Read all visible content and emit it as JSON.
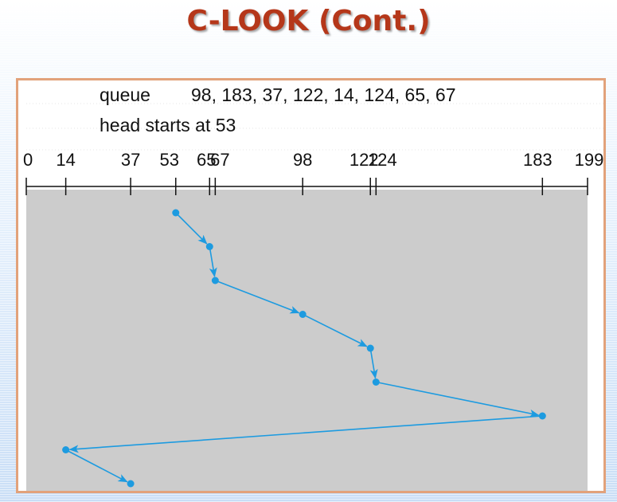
{
  "slide": {
    "title": "C-LOOK (Cont.)"
  },
  "diagram": {
    "queue_label": "queue",
    "queue_values": "98, 183, 37, 122, 14, 124, 65, 67",
    "head_text": "head starts at 53",
    "colors": {
      "title": "#b5371a",
      "frame_border": "#e2a27b",
      "plot_background": "#cccccc",
      "path": "#1d9be0",
      "axis": "#111111"
    },
    "axis_ticks": [
      {
        "value": 0,
        "label": "0"
      },
      {
        "value": 14,
        "label": "14"
      },
      {
        "value": 37,
        "label": "37"
      },
      {
        "value": 53,
        "label": "53"
      },
      {
        "value": 65,
        "label": "65"
      },
      {
        "value": 67,
        "label": "67"
      },
      {
        "value": 98,
        "label": "98"
      },
      {
        "value": 122,
        "label": "122"
      },
      {
        "value": 124,
        "label": "124"
      },
      {
        "value": 183,
        "label": "183"
      },
      {
        "value": 199,
        "label": "199"
      }
    ],
    "head_sequence": [
      53,
      65,
      67,
      98,
      122,
      124,
      183,
      14,
      37
    ]
  }
}
